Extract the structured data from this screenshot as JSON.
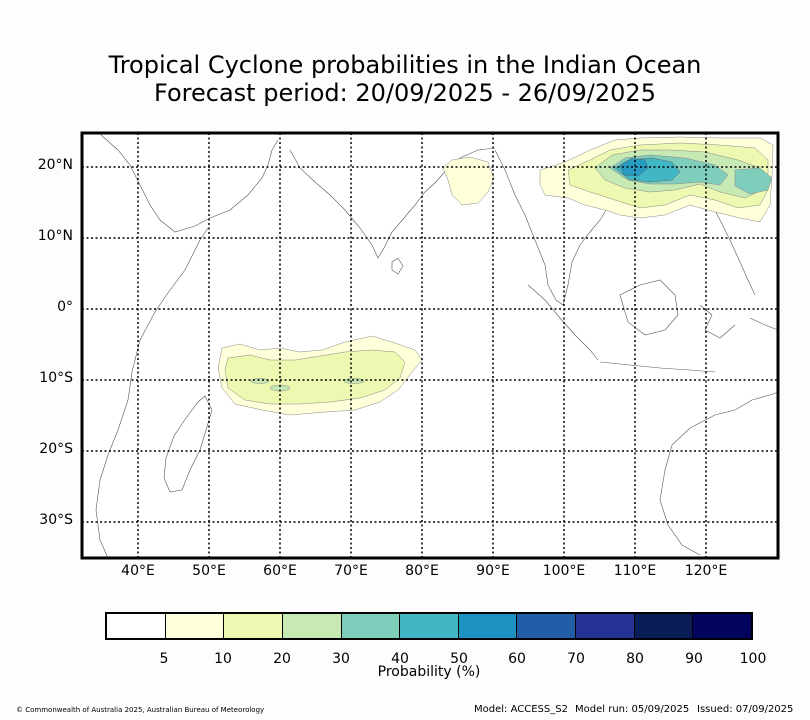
{
  "title_line1": "Tropical Cyclone probabilities in the Indian Ocean",
  "title_line2": "Forecast period: 20/09/2025 - 26/09/2025",
  "latitude_labels": [
    "20°N",
    "10°N",
    "0°",
    "10°S",
    "20°S",
    "30°S"
  ],
  "longitude_labels": [
    "40°E",
    "50°E",
    "60°E",
    "70°E",
    "80°E",
    "90°E",
    "100°E",
    "110°E",
    "120°E"
  ],
  "colorbar": {
    "title": "Probability (%)",
    "tick_labels": [
      "5",
      "10",
      "20",
      "30",
      "40",
      "50",
      "60",
      "70",
      "80",
      "90",
      "100"
    ],
    "colors": [
      "#ffffff",
      "#ffffd9",
      "#edf8b1",
      "#c7e9b4",
      "#7fcdbb",
      "#41b6c4",
      "#1d91c0",
      "#225ea8",
      "#253494",
      "#081d58",
      "#03045e"
    ]
  },
  "footer": {
    "copyright": "© Commonwealth of Australia 2025, Australian Bureau of Meteorology",
    "model": "Model: ACCESS_S2",
    "model_run": "Model run: 05/09/2025",
    "issued": "Issued: 07/09/2025"
  }
}
